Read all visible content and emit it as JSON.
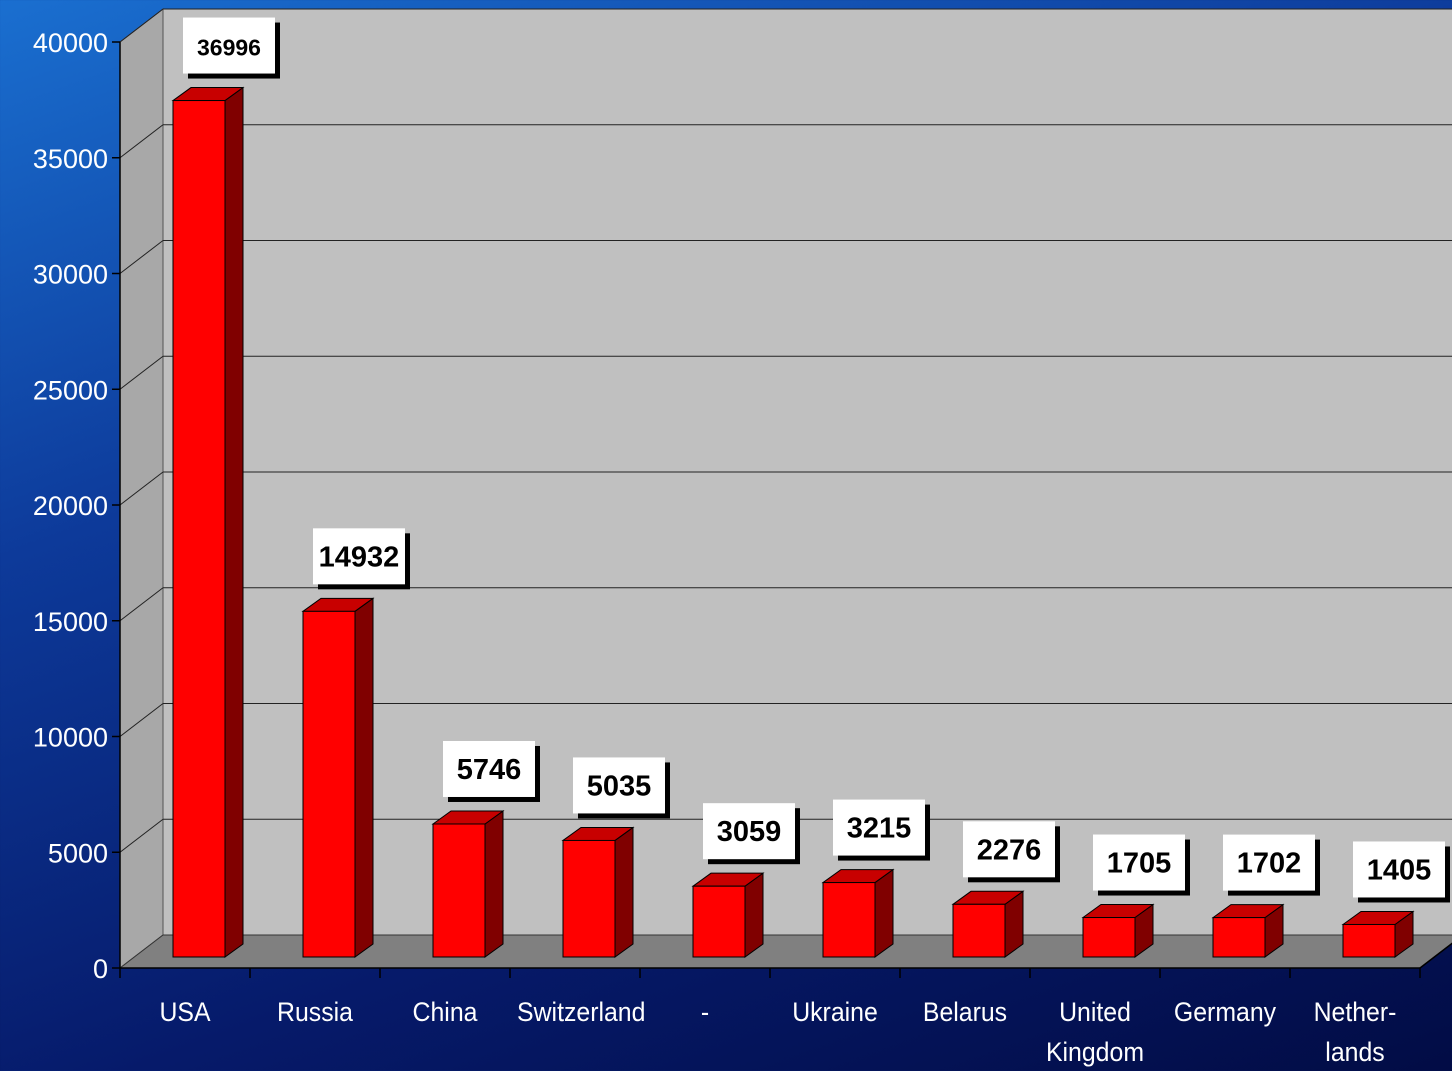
{
  "chart_data": {
    "type": "bar3d",
    "categories": [
      "USA",
      "Russia",
      "China",
      "Switzerland",
      "-",
      "Ukraine",
      "Belarus",
      "United Kingdom",
      "Germany",
      "Nether-lands"
    ],
    "values": [
      36996,
      14932,
      5746,
      5035,
      3059,
      3215,
      2276,
      1705,
      1702,
      1405
    ],
    "color": "#ff0000",
    "ylim": [
      0,
      40000
    ],
    "yticks": [
      0,
      5000,
      10000,
      15000,
      20000,
      25000,
      30000,
      35000,
      40000
    ],
    "grid": true
  }
}
